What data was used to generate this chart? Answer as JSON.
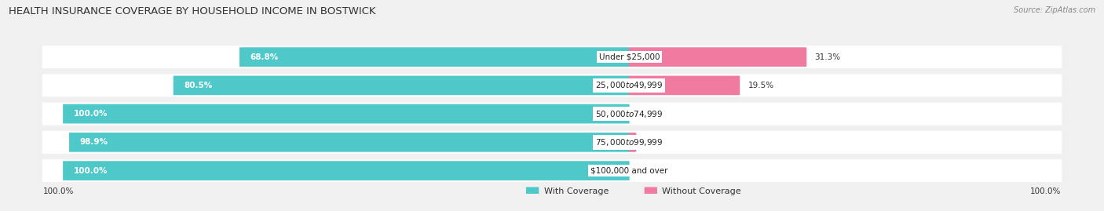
{
  "title": "HEALTH INSURANCE COVERAGE BY HOUSEHOLD INCOME IN BOSTWICK",
  "source": "Source: ZipAtlas.com",
  "categories": [
    "Under $25,000",
    "$25,000 to $49,999",
    "$50,000 to $74,999",
    "$75,000 to $99,999",
    "$100,000 and over"
  ],
  "with_coverage": [
    68.8,
    80.5,
    100.0,
    98.9,
    100.0
  ],
  "without_coverage": [
    31.3,
    19.5,
    0.0,
    1.2,
    0.0
  ],
  "color_with": "#4EC8C8",
  "color_without": "#F07AA0",
  "bg_color": "#f0f0f0",
  "bar_bg": "#ffffff",
  "title_fontsize": 9.5,
  "source_fontsize": 7,
  "label_fontsize": 7.5,
  "axis_label_fontsize": 7.5,
  "legend_fontsize": 8,
  "cat_label_fontsize": 7.5
}
